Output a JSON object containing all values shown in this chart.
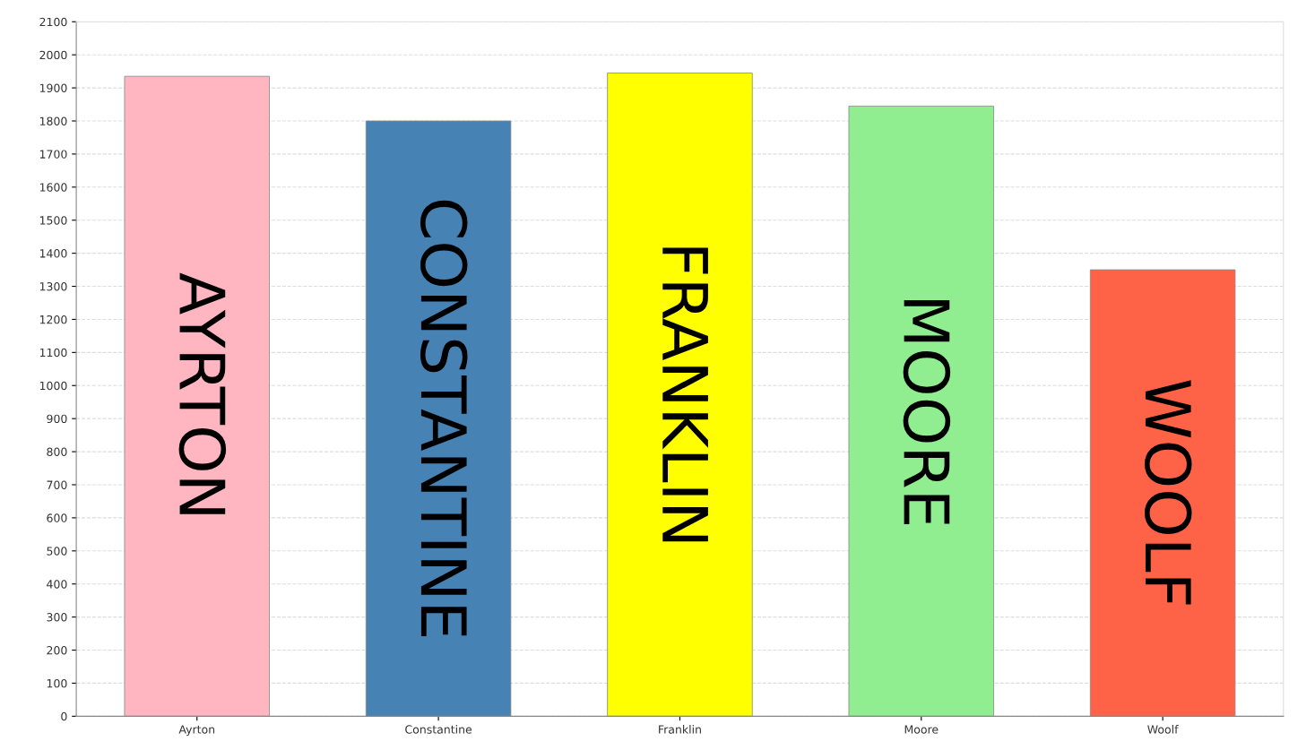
{
  "chart_data": {
    "type": "bar",
    "categories": [
      "Ayrton",
      "Constantine",
      "Franklin",
      "Moore",
      "Woolf"
    ],
    "values": [
      1935,
      1800,
      1945,
      1845,
      1350
    ],
    "colors": [
      "#ffb6c1",
      "#4682b4",
      "#ffff00",
      "#90ee90",
      "#ff6347"
    ],
    "ylim": [
      0,
      2100
    ],
    "yticks": [
      0,
      100,
      200,
      300,
      400,
      500,
      600,
      700,
      800,
      900,
      1000,
      1100,
      1200,
      1300,
      1400,
      1500,
      1600,
      1700,
      1800,
      1900,
      2000,
      2100
    ],
    "grid": "y",
    "annotations": [
      "AYRTON",
      "CONSTANTINE",
      "FRANKLIN",
      "MOORE",
      "WOOLF"
    ]
  }
}
